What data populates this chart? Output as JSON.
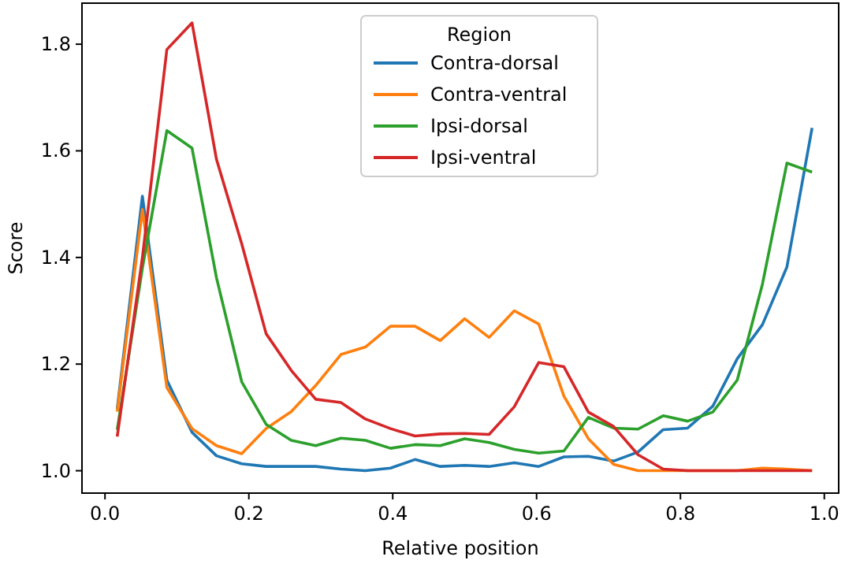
{
  "chart_data": {
    "type": "line",
    "xlabel": "Relative position",
    "ylabel": "Score",
    "legend_title": "Region",
    "legend": "top",
    "grid": false,
    "x": [
      0.017,
      0.052,
      0.086,
      0.121,
      0.155,
      0.19,
      0.224,
      0.259,
      0.293,
      0.328,
      0.362,
      0.397,
      0.431,
      0.466,
      0.5,
      0.534,
      0.569,
      0.603,
      0.638,
      0.672,
      0.707,
      0.741,
      0.776,
      0.81,
      0.845,
      0.879,
      0.914,
      0.948,
      0.983
    ],
    "series": [
      {
        "name": "Contra-dorsal",
        "color": "#1f77b4",
        "values": [
          1.116,
          1.515,
          1.17,
          1.072,
          1.028,
          1.013,
          1.008,
          1.008,
          1.008,
          1.003,
          1.0,
          1.005,
          1.021,
          1.008,
          1.01,
          1.008,
          1.015,
          1.008,
          1.026,
          1.027,
          1.018,
          1.035,
          1.077,
          1.08,
          1.121,
          1.21,
          1.274,
          1.382,
          1.643
        ]
      },
      {
        "name": "Contra-ventral",
        "color": "#ff7f0e",
        "values": [
          1.111,
          1.49,
          1.156,
          1.079,
          1.047,
          1.032,
          1.079,
          1.111,
          1.16,
          1.218,
          1.232,
          1.271,
          1.271,
          1.244,
          1.285,
          1.25,
          1.3,
          1.275,
          1.14,
          1.06,
          1.012,
          1.0,
          1.0,
          1.0,
          1.0,
          1.0,
          1.005,
          1.003,
          1.0
        ]
      },
      {
        "name": "Ipsi-dorsal",
        "color": "#2ca02c",
        "values": [
          1.077,
          1.38,
          1.638,
          1.605,
          1.362,
          1.167,
          1.087,
          1.057,
          1.047,
          1.061,
          1.057,
          1.042,
          1.049,
          1.047,
          1.06,
          1.053,
          1.04,
          1.033,
          1.037,
          1.1,
          1.08,
          1.078,
          1.103,
          1.093,
          1.11,
          1.17,
          1.35,
          1.577,
          1.56
        ]
      },
      {
        "name": "Ipsi-ventral",
        "color": "#d62728",
        "values": [
          1.064,
          1.4,
          1.79,
          1.84,
          1.584,
          1.426,
          1.257,
          1.188,
          1.134,
          1.128,
          1.097,
          1.079,
          1.065,
          1.069,
          1.07,
          1.068,
          1.12,
          1.203,
          1.195,
          1.11,
          1.083,
          1.03,
          1.003,
          1.0,
          1.0,
          1.0,
          1.0,
          1.0,
          1.0
        ]
      }
    ],
    "xlim": [
      -0.032,
      1.02
    ],
    "ylim": [
      0.958,
      1.877
    ],
    "xticks": [
      {
        "value": 0,
        "label": "0.0"
      },
      {
        "value": 0.2,
        "label": "0.2"
      },
      {
        "value": 0.4,
        "label": "0.4"
      },
      {
        "value": 0.6,
        "label": "0.6"
      },
      {
        "value": 0.8,
        "label": "0.8"
      },
      {
        "value": 1,
        "label": "1.0"
      }
    ],
    "yticks": [
      {
        "value": 1,
        "label": "1.0"
      },
      {
        "value": 1.2,
        "label": "1.2"
      },
      {
        "value": 1.4,
        "label": "1.4"
      },
      {
        "value": 1.6,
        "label": "1.6"
      },
      {
        "value": 1.8,
        "label": "1.8"
      }
    ]
  }
}
